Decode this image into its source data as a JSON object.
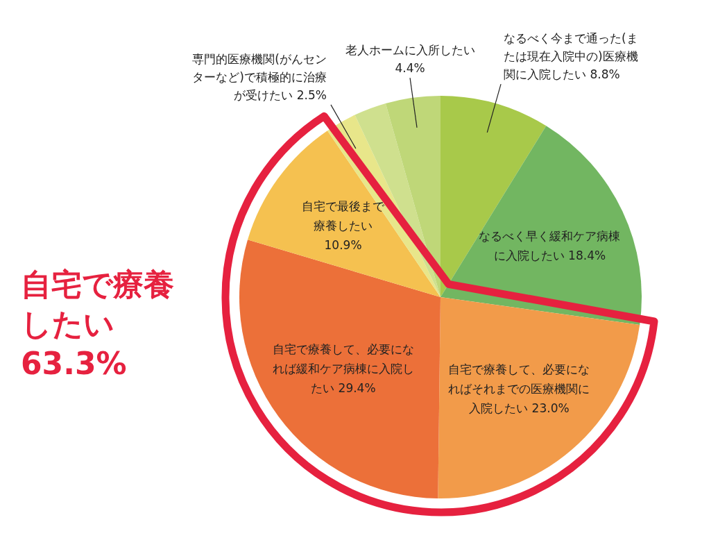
{
  "chart_data": {
    "type": "pie",
    "categories": [
      "なるべく今まで通った(または現在入院中の)医療機関に入院したい",
      "なるべく早く緩和ケア病棟に入院したい",
      "自宅で療養して、必要になればそれまでの医療機関に入院したい",
      "自宅で療養して、必要になれば緩和ケア病棟に入院したい",
      "自宅で最後まで療養したい",
      "専門的医療機関(がんセンターなど)で積極的に治療が受けたい",
      null,
      "老人ホームに入所したい"
    ],
    "values": [
      8.8,
      18.4,
      23.0,
      29.4,
      10.9,
      2.5,
      2.6,
      4.4
    ],
    "value_labels": [
      "8.8%",
      "18.4%",
      "23.0%",
      "29.4%",
      "10.9%",
      "2.5%",
      null,
      "4.4%"
    ],
    "colors": [
      "#a8c94a",
      "#72b661",
      "#f29b4a",
      "#ec7039",
      "#f5c150",
      "#e8e68a",
      "#cfe08e",
      "#bfd778"
    ],
    "annotations": [
      "自宅で療養したい 63.3%"
    ]
  }
}
